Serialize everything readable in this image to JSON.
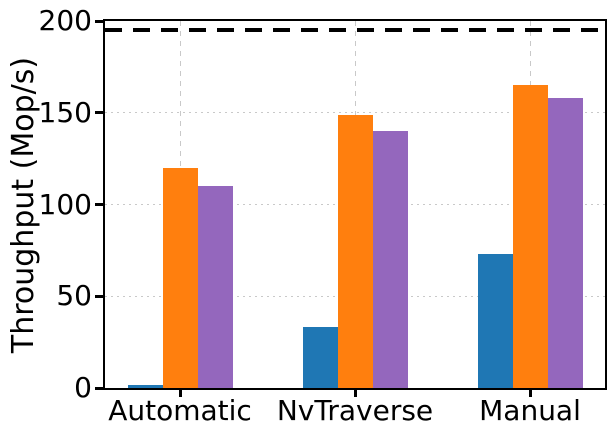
{
  "chart_data": {
    "type": "bar",
    "title": "",
    "ylabel": "Throughput (Mop/s)",
    "xlabel": "",
    "ylim": [
      0,
      200
    ],
    "yticks": [
      0,
      50,
      100,
      150,
      200
    ],
    "grid": true,
    "legend_position": "none",
    "categories": [
      "Automatic",
      "NvTraverse",
      "Manual"
    ],
    "series": [
      {
        "name": "series-1-blue",
        "color": "#1f77b4",
        "values": [
          1.5,
          33,
          73
        ]
      },
      {
        "name": "series-2-orange",
        "color": "#ff7f0e",
        "values": [
          120,
          149,
          165
        ]
      },
      {
        "name": "series-3-purple",
        "color": "#9467bd",
        "values": [
          110,
          140,
          158
        ]
      }
    ],
    "reference_line": {
      "value": 195,
      "color": "#000000",
      "style": "dashed"
    }
  }
}
